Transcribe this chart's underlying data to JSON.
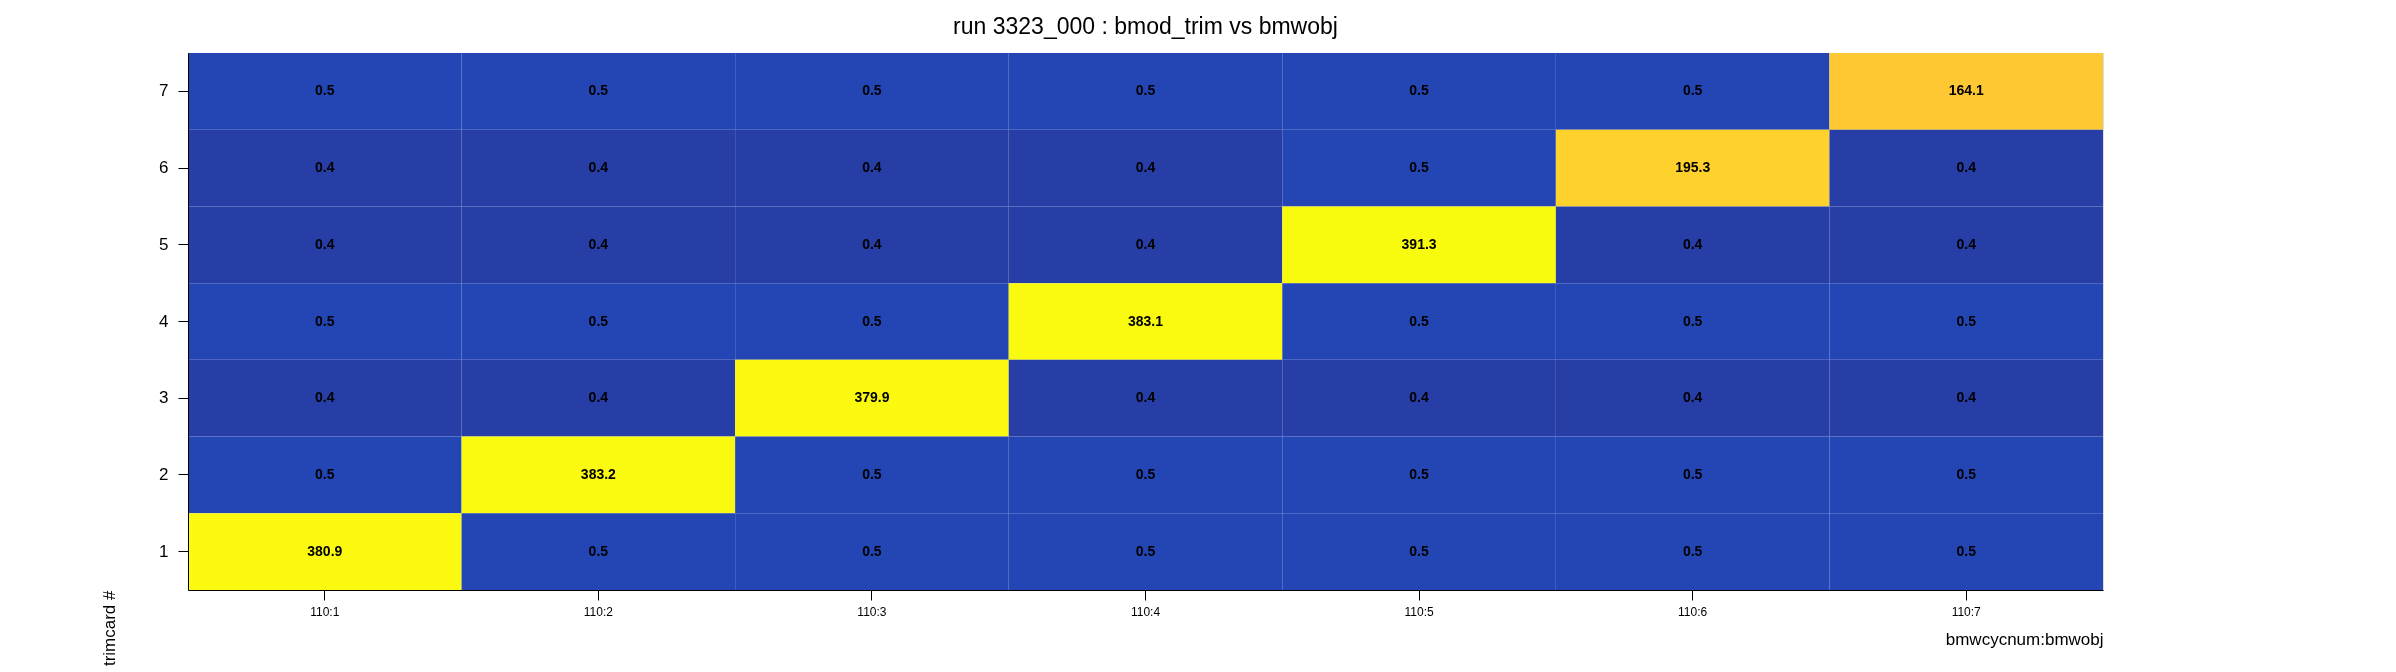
{
  "chart_data": {
    "type": "heatmap",
    "title": "run 3323_000 : bmod_trim vs bmwobj",
    "xlabel": "bmwcycnum:bmwobj",
    "ylabel": "trimcard #",
    "categories": [
      "110:1",
      "110:2",
      "110:3",
      "110:4",
      "110:5",
      "110:6",
      "110:7"
    ],
    "y_categories": [
      "7",
      "6",
      "5",
      "4",
      "3",
      "2",
      "1"
    ],
    "cells": [
      [
        0.5,
        0.5,
        0.5,
        0.5,
        0.5,
        0.5,
        164.1
      ],
      [
        0.4,
        0.4,
        0.4,
        0.4,
        0.5,
        195.3,
        0.4
      ],
      [
        0.4,
        0.4,
        0.4,
        0.4,
        391.3,
        0.4,
        0.4
      ],
      [
        0.5,
        0.5,
        0.5,
        383.1,
        0.5,
        0.5,
        0.5
      ],
      [
        0.4,
        0.4,
        379.9,
        0.4,
        0.4,
        0.4,
        0.4
      ],
      [
        0.5,
        383.2,
        0.5,
        0.5,
        0.5,
        0.5,
        0.5
      ],
      [
        380.9,
        0.5,
        0.5,
        0.5,
        0.5,
        0.5,
        0.5
      ]
    ],
    "data_labels": true,
    "grid": false
  }
}
